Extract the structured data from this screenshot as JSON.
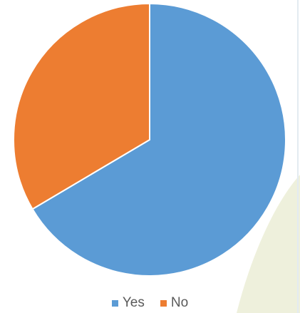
{
  "chart_data": {
    "type": "pie",
    "categories": [
      "Yes",
      "No"
    ],
    "values": [
      66.5,
      33.5
    ],
    "colors": [
      "#5b9bd5",
      "#ed7d31"
    ],
    "legend_position": "bottom",
    "title": ""
  }
}
